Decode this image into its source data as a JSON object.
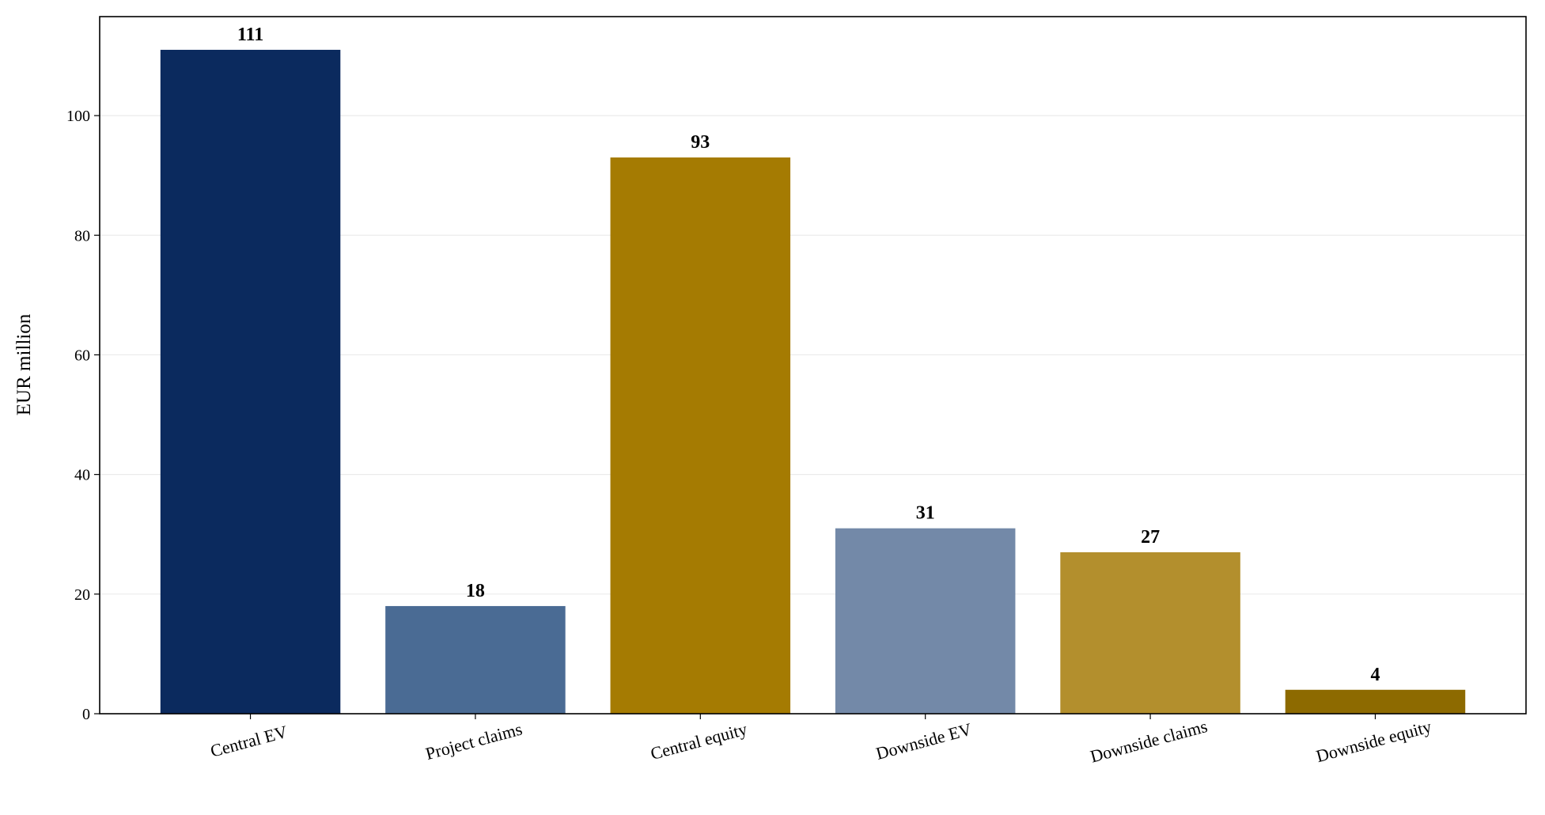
{
  "chart_data": {
    "type": "bar",
    "y_label": "EUR million",
    "categories": [
      "Central EV",
      "Project claims",
      "Central equity",
      "Downside EV",
      "Downside claims",
      "Downside equity"
    ],
    "values": [
      111,
      18,
      93,
      31,
      27,
      4
    ],
    "colors": [
      "#0b2a5e",
      "#4a6b94",
      "#a57b02",
      "#7389a8",
      "#b38f2d",
      "#8d6a00"
    ],
    "ylim": [
      0,
      116.55
    ],
    "yticks": [
      0,
      20,
      40,
      60,
      80,
      100
    ],
    "grid": true
  }
}
